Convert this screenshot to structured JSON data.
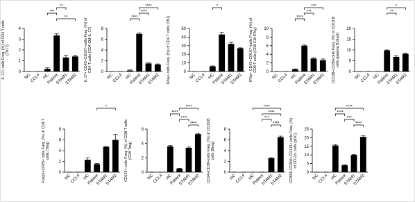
{
  "chart_data": [
    {
      "type": "bar",
      "title": "IL-17+ cells Freq. (%) of CD4 T cells (Th17)",
      "categories": [
        "NC",
        "CCL4",
        "HC",
        "Patient",
        "STAM1",
        "STAM2"
      ],
      "values": [
        0,
        0,
        0.25,
        3.35,
        1.3,
        1.4
      ],
      "errors": [
        0,
        0,
        0.1,
        0.15,
        0.2,
        0.1
      ],
      "color": "#000000",
      "ylim": [
        0,
        4
      ],
      "yticks": [
        0,
        1,
        2,
        3,
        4
      ],
      "annotations": [
        {
          "label": "**",
          "between": [
            "Patient",
            "STAM1"
          ]
        },
        {
          "label": "***",
          "between": [
            "HC",
            "Patient"
          ]
        },
        {
          "label": "**",
          "between": [
            "Patient",
            "STAM2"
          ]
        }
      ]
    },
    {
      "type": "bar",
      "title": "IL-17+ CD45+CD107+cells Freq. (%) of CD4 T cells (CD4 CM-IL-17)",
      "categories": [
        "NC",
        "CCL4",
        "HC",
        "Patient",
        "STAM1",
        "STAM2"
      ],
      "values": [
        0,
        0,
        0.2,
        7.0,
        1.5,
        1.3
      ],
      "errors": [
        0,
        0,
        0.1,
        0.15,
        0.1,
        0.1
      ],
      "color": "#000000",
      "ylim": [
        0,
        8
      ],
      "yticks": [
        0,
        2,
        4,
        6,
        8
      ],
      "annotations": [
        {
          "label": "****",
          "between": [
            "Patient",
            "STAM2"
          ]
        },
        {
          "label": "****",
          "between": [
            "Patient",
            "STAM1"
          ]
        },
        {
          "label": "****",
          "between": [
            "HC",
            "Patient"
          ]
        }
      ]
    },
    {
      "type": "bar",
      "title": "IFNγ+ cells Freq. (%) of CD4 T cells (Th1)",
      "categories": [
        "NC",
        "CCL4",
        "HC",
        "Patient",
        "STAM1",
        "STAM2"
      ],
      "values": [
        0,
        0,
        6,
        43,
        32,
        27
      ],
      "errors": [
        0,
        0,
        0.5,
        2.5,
        2,
        0.5
      ],
      "color": "#000000",
      "ylim": [
        0,
        50
      ],
      "yticks": [
        0,
        10,
        20,
        30,
        40,
        50
      ],
      "annotations": [
        {
          "label": "*",
          "between": [
            "HC",
            "Patient"
          ]
        }
      ]
    },
    {
      "type": "bar",
      "title": "IFNγ+ CD45+CD107+cells Freq. (%) of CD8 T cells (CD8 CM-IFNγ)",
      "categories": [
        "NC",
        "CCL4",
        "HC",
        "Patient",
        "STAM1",
        "STAM2"
      ],
      "values": [
        0,
        0,
        0.5,
        6.0,
        3.0,
        2.6
      ],
      "errors": [
        0,
        0,
        0.1,
        0.15,
        0.2,
        0.3
      ],
      "color": "#000000",
      "ylim": [
        0,
        10
      ],
      "yticks": [
        0,
        2,
        4,
        6,
        8,
        10
      ],
      "annotations": [
        {
          "label": "***",
          "between": [
            "Patient",
            "STAM2"
          ]
        },
        {
          "label": "***",
          "between": [
            "Patient",
            "STAM1"
          ]
        },
        {
          "label": "****",
          "between": [
            "HC",
            "Patient"
          ]
        }
      ]
    },
    {
      "type": "bar",
      "title": "CD138+CD38+cells Freq. (%) of CD19 B cells (plasma B blast)",
      "categories": [
        "NC",
        "CCL4",
        "HC",
        "Patient",
        "STAM1",
        "STAM2"
      ],
      "values": [
        0,
        0,
        0,
        9.8,
        6.8,
        8.2
      ],
      "errors": [
        0,
        0,
        0,
        0.2,
        0.5,
        0.4
      ],
      "color": "#000000",
      "ylim": [
        0,
        20
      ],
      "yticks": [
        0,
        5,
        10,
        15,
        20
      ],
      "annotations": [
        {
          "label": "*",
          "between": [
            "Patient",
            "STAM2"
          ]
        },
        {
          "label": "**",
          "between": [
            "Patient",
            "STAM1"
          ]
        }
      ]
    },
    {
      "type": "bar",
      "title": "Foxp3+CD25+ cells Freq. (%) of CD4 T cells (Treg)",
      "categories": [
        "NC",
        "CCL4",
        "HC",
        "Patient",
        "STAM1",
        "STAM2"
      ],
      "values": [
        0,
        0,
        2.3,
        1.5,
        4.7,
        6.0
      ],
      "errors": [
        0,
        0,
        0.4,
        0.1,
        0.1,
        1.0
      ],
      "color": "#000000",
      "ylim": [
        0,
        8
      ],
      "yticks": [
        0,
        2,
        4,
        6,
        8
      ],
      "annotations": [
        {
          "label": "*",
          "between": [
            "Patient",
            "STAM2"
          ]
        }
      ]
    },
    {
      "type": "bar",
      "title": "CD122+ cells Freq. (%) of CD8 T cells (CD8 Treg)",
      "categories": [
        "NC",
        "CCL4",
        "HC",
        "Patient",
        "STAM1",
        "STAM2"
      ],
      "values": [
        0,
        0,
        3.6,
        0.5,
        3.4,
        5.3
      ],
      "errors": [
        0,
        0,
        0.1,
        0.05,
        0.1,
        0.1
      ],
      "color": "#000000",
      "ylim": [
        0,
        6
      ],
      "yticks": [
        0,
        2,
        4,
        6
      ],
      "annotations": [
        {
          "label": "****",
          "between": [
            "Patient",
            "STAM2"
          ]
        },
        {
          "label": "****",
          "between": [
            "HC",
            "Patient"
          ]
        },
        {
          "label": "****",
          "between": [
            "Patient",
            "STAM1"
          ]
        },
        {
          "label": "****",
          "between": [
            "STAM1",
            "STAM2"
          ]
        }
      ]
    },
    {
      "type": "bar",
      "title": "CD24+CD38+cells Freq. (%) of CD19 B cells (Breg)",
      "categories": [
        "NC",
        "CCL4",
        "HC",
        "Patient",
        "STAM1",
        "STAM2"
      ],
      "values": [
        0,
        0,
        0,
        0,
        2.6,
        6.5
      ],
      "errors": [
        0,
        0,
        0,
        0,
        0.1,
        0.2
      ],
      "color": "#000000",
      "ylim": [
        0,
        8
      ],
      "yticks": [
        0,
        2,
        4,
        6,
        8
      ],
      "annotations": [
        {
          "label": "****",
          "between": [
            "HC",
            "STAM2"
          ]
        },
        {
          "label": "****",
          "between": [
            "Patient",
            "STAM2"
          ]
        },
        {
          "label": "***",
          "between": [
            "Patient",
            "STAM1"
          ]
        },
        {
          "label": "****",
          "between": [
            "STAM1",
            "STAM2"
          ]
        }
      ]
    },
    {
      "type": "bar",
      "title": "CD303+CD304+CD123+ cells Freq. (%) of CD11c- cells (pDC)",
      "categories": [
        "NC",
        "CCL4",
        "HC",
        "Patient",
        "STAM1",
        "STAM2"
      ],
      "values": [
        0,
        0,
        15.5,
        4,
        10,
        20.5
      ],
      "errors": [
        0,
        0,
        0.5,
        0.3,
        0.3,
        0.6
      ],
      "color": "#000000",
      "ylim": [
        0,
        25
      ],
      "yticks": [
        0,
        5,
        10,
        15,
        20,
        25
      ],
      "annotations": [
        {
          "label": "****",
          "between": [
            "HC",
            "STAM2"
          ]
        },
        {
          "label": "****",
          "between": [
            "HC",
            "Patient"
          ]
        },
        {
          "label": "***",
          "between": [
            "Patient",
            "STAM1"
          ]
        },
        {
          "label": "****",
          "between": [
            "STAM1",
            "STAM2"
          ]
        }
      ]
    }
  ]
}
